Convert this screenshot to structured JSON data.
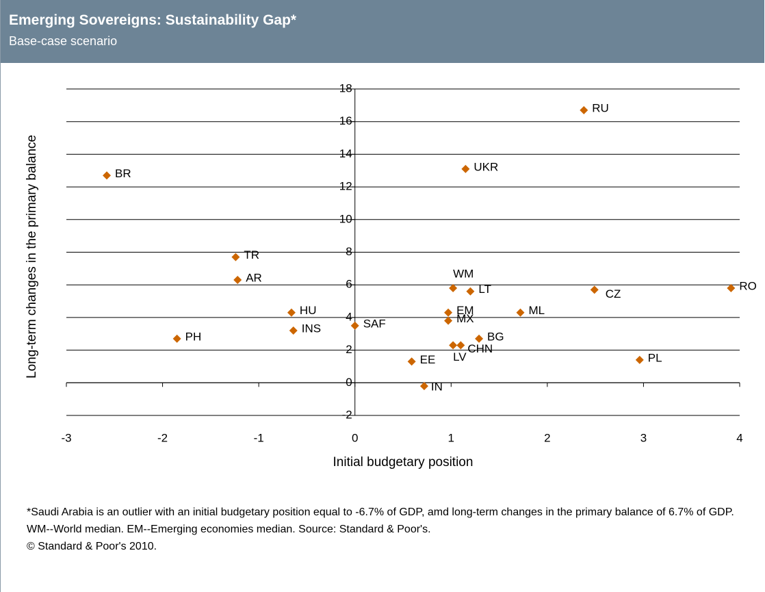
{
  "chart_data": {
    "type": "scatter",
    "title": "Emerging Sovereigns: Sustainability Gap*",
    "subtitle": "Base-case scenario",
    "xlabel": "Initial budgetary position",
    "ylabel": "Long-term changes in the primary balance",
    "labels": [
      "RU",
      "BR",
      "UKR",
      "TR",
      "AR",
      "WM",
      "LT",
      "CZ",
      "RO",
      "EM",
      "ML",
      "HU",
      "SAF",
      "MX",
      "INS",
      "PH",
      "BG",
      "LV",
      "CHN",
      "EE",
      "PL",
      "IN"
    ],
    "x": [
      2.38,
      -2.58,
      1.15,
      -1.24,
      -1.22,
      1.02,
      1.2,
      2.49,
      3.91,
      0.97,
      1.72,
      -0.66,
      0.0,
      0.97,
      -0.64,
      -1.85,
      1.29,
      1.02,
      1.1,
      0.59,
      2.96,
      0.72
    ],
    "values": [
      16.7,
      12.7,
      13.1,
      7.7,
      6.3,
      5.8,
      5.6,
      5.7,
      5.8,
      4.3,
      4.3,
      4.3,
      3.5,
      3.8,
      3.2,
      2.7,
      2.7,
      2.3,
      2.3,
      1.3,
      1.4,
      -0.2
    ],
    "color": "#cc6600",
    "xlim": [
      -3,
      4
    ],
    "ylim": [
      -2,
      18
    ],
    "xticks": [
      -3,
      -2,
      -1,
      0,
      1,
      2,
      3,
      4
    ],
    "yticks": [
      -2,
      0,
      2,
      4,
      6,
      8,
      10,
      12,
      14,
      16,
      18
    ],
    "grid": true,
    "footnote": "*Saudi Arabia is an outlier with an initial budgetary position equal to -6.7% of GDP, amd long-term changes in the primary balance of 6.7% of GDP. WM--World median. EM--Emerging economies median. Source: Standard & Poor's.",
    "copyright": "© Standard & Poor's 2010."
  }
}
